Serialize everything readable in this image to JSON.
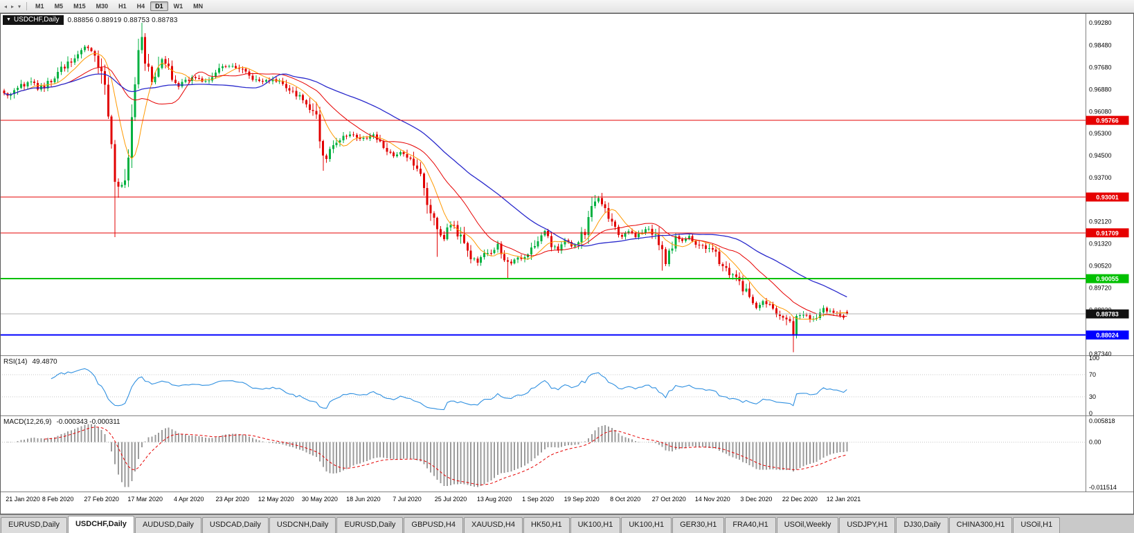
{
  "toolbar": {
    "icons": [
      {
        "name": "chart-back-icon",
        "glyph": "◂"
      },
      {
        "name": "chart-forward-icon",
        "glyph": "▸"
      },
      {
        "name": "chart-list-dropdown-icon",
        "glyph": "▾"
      }
    ],
    "timeframes": [
      "M1",
      "M5",
      "M15",
      "M30",
      "H1",
      "H4",
      "D1",
      "W1",
      "MN"
    ],
    "active_timeframe": "D1"
  },
  "chart": {
    "collapse_glyph": "▼",
    "symbol_title": "USDCHF,Daily",
    "ohlc_text": "0.88856 0.88919 0.88753 0.88783"
  },
  "indicators": {
    "rsi_label": "RSI(14)",
    "rsi_value": "49.4870",
    "macd_label": "MACD(12,26,9)",
    "macd_values": "-0.000343 -0.000311"
  },
  "chart_data": {
    "type": "candlestick",
    "symbol": "USDCHF",
    "period": "Daily",
    "candles_total": 252,
    "up_color": "#00b140",
    "down_color": "#e10000",
    "last_ohlc": {
      "open": 0.88856,
      "high": 0.88919,
      "low": 0.88753,
      "close": 0.88783
    },
    "price_axis": {
      "min": 0.8729,
      "max": 0.9961,
      "labels": [
        "0.99280",
        "0.98480",
        "0.97680",
        "0.96880",
        "0.96080",
        "0.95300",
        "0.94500",
        "0.93700",
        "0.92120",
        "0.91320",
        "0.90520",
        "0.89720",
        "0.88920",
        "0.87340"
      ]
    },
    "date_labels": [
      "21 Jan 2020",
      "8 Feb 2020",
      "27 Feb 2020",
      "17 Mar 2020",
      "4 Apr 2020",
      "23 Apr 2020",
      "12 May 2020",
      "30 May 2020",
      "18 Jun 2020",
      "7 Jul 2020",
      "25 Jul 2020",
      "13 Aug 2020",
      "1 Sep 2020",
      "19 Sep 2020",
      "8 Oct 2020",
      "27 Oct 2020",
      "14 Nov 2020",
      "3 Dec 2020",
      "22 Dec 2020",
      "12 Jan 2021"
    ],
    "first_label_candle": 3,
    "label_step_candles": 13,
    "close_anchors": [
      [
        0,
        0.967
      ],
      [
        2,
        0.9665
      ],
      [
        4,
        0.969
      ],
      [
        6,
        0.9705
      ],
      [
        8,
        0.9715
      ],
      [
        10,
        0.9695
      ],
      [
        12,
        0.97
      ],
      [
        14,
        0.972
      ],
      [
        16,
        0.9745
      ],
      [
        18,
        0.977
      ],
      [
        20,
        0.9795
      ],
      [
        22,
        0.982
      ],
      [
        24,
        0.984
      ],
      [
        25,
        0.9845
      ],
      [
        26,
        0.983
      ],
      [
        28,
        0.979
      ],
      [
        29,
        0.975
      ],
      [
        30,
        0.97
      ],
      [
        31,
        0.962
      ],
      [
        32,
        0.95
      ],
      [
        33,
        0.933
      ],
      [
        34,
        0.934
      ],
      [
        35,
        0.936
      ],
      [
        36,
        0.933
      ],
      [
        37,
        0.945
      ],
      [
        38,
        0.958
      ],
      [
        39,
        0.972
      ],
      [
        40,
        0.985
      ],
      [
        41,
        0.987
      ],
      [
        42,
        0.98
      ],
      [
        43,
        0.9755
      ],
      [
        44,
        0.9715
      ],
      [
        45,
        0.9745
      ],
      [
        46,
        0.9775
      ],
      [
        47,
        0.9795
      ],
      [
        48,
        0.979
      ],
      [
        49,
        0.9755
      ],
      [
        50,
        0.9725
      ],
      [
        52,
        0.9705
      ],
      [
        54,
        0.9715
      ],
      [
        56,
        0.9735
      ],
      [
        58,
        0.9725
      ],
      [
        60,
        0.9715
      ],
      [
        62,
        0.973
      ],
      [
        64,
        0.9755
      ],
      [
        66,
        0.977
      ],
      [
        68,
        0.9775
      ],
      [
        70,
        0.9765
      ],
      [
        72,
        0.9755
      ],
      [
        74,
        0.973
      ],
      [
        76,
        0.9715
      ],
      [
        78,
        0.972
      ],
      [
        80,
        0.9725
      ],
      [
        82,
        0.971
      ],
      [
        84,
        0.97
      ],
      [
        86,
        0.968
      ],
      [
        88,
        0.966
      ],
      [
        90,
        0.9645
      ],
      [
        92,
        0.961
      ],
      [
        93,
        0.9575
      ],
      [
        94,
        0.952
      ],
      [
        95,
        0.945
      ],
      [
        96,
        0.9445
      ],
      [
        97,
        0.9465
      ],
      [
        98,
        0.949
      ],
      [
        100,
        0.9515
      ],
      [
        102,
        0.9525
      ],
      [
        104,
        0.953
      ],
      [
        106,
        0.951
      ],
      [
        108,
        0.9515
      ],
      [
        110,
        0.952
      ],
      [
        112,
        0.95
      ],
      [
        114,
        0.947
      ],
      [
        116,
        0.945
      ],
      [
        118,
        0.946
      ],
      [
        120,
        0.9445
      ],
      [
        122,
        0.942
      ],
      [
        123,
        0.9395
      ],
      [
        124,
        0.937
      ],
      [
        125,
        0.933
      ],
      [
        126,
        0.929
      ],
      [
        127,
        0.925
      ],
      [
        128,
        0.921
      ],
      [
        129,
        0.918
      ],
      [
        130,
        0.916
      ],
      [
        131,
        0.915
      ],
      [
        132,
        0.9185
      ],
      [
        133,
        0.9205
      ],
      [
        134,
        0.919
      ],
      [
        135,
        0.9175
      ],
      [
        136,
        0.915
      ],
      [
        137,
        0.912
      ],
      [
        138,
        0.9095
      ],
      [
        139,
        0.908
      ],
      [
        140,
        0.9072
      ],
      [
        141,
        0.9068
      ],
      [
        142,
        0.9085
      ],
      [
        143,
        0.91
      ],
      [
        145,
        0.9092
      ],
      [
        147,
        0.913
      ],
      [
        149,
        0.908
      ],
      [
        151,
        0.906
      ],
      [
        153,
        0.909
      ],
      [
        155,
        0.9082
      ],
      [
        157,
        0.912
      ],
      [
        159,
        0.915
      ],
      [
        161,
        0.917
      ],
      [
        163,
        0.9132
      ],
      [
        165,
        0.9112
      ],
      [
        167,
        0.914
      ],
      [
        169,
        0.9125
      ],
      [
        171,
        0.9136
      ],
      [
        173,
        0.918
      ],
      [
        175,
        0.925
      ],
      [
        176,
        0.928
      ],
      [
        177,
        0.9295
      ],
      [
        178,
        0.9268
      ],
      [
        180,
        0.923
      ],
      [
        182,
        0.918
      ],
      [
        184,
        0.916
      ],
      [
        186,
        0.918
      ],
      [
        188,
        0.9155
      ],
      [
        190,
        0.9175
      ],
      [
        192,
        0.9185
      ],
      [
        194,
        0.916
      ],
      [
        196,
        0.912
      ],
      [
        197,
        0.906
      ],
      [
        198,
        0.911
      ],
      [
        200,
        0.915
      ],
      [
        202,
        0.914
      ],
      [
        204,
        0.9155
      ],
      [
        206,
        0.9135
      ],
      [
        208,
        0.912
      ],
      [
        210,
        0.911
      ],
      [
        212,
        0.909
      ],
      [
        214,
        0.905
      ],
      [
        216,
        0.902
      ],
      [
        218,
        0.9
      ],
      [
        220,
        0.897
      ],
      [
        222,
        0.894
      ],
      [
        224,
        0.89
      ],
      [
        226,
        0.892
      ],
      [
        228,
        0.891
      ],
      [
        230,
        0.888
      ],
      [
        232,
        0.8865
      ],
      [
        234,
        0.885
      ],
      [
        235,
        0.88
      ],
      [
        236,
        0.887
      ],
      [
        238,
        0.888
      ],
      [
        240,
        0.8855
      ],
      [
        242,
        0.8865
      ],
      [
        244,
        0.8895
      ],
      [
        246,
        0.889
      ],
      [
        248,
        0.8885
      ],
      [
        250,
        0.887
      ],
      [
        251,
        0.8878
      ]
    ],
    "spike_highs": [
      [
        8,
        0.9732
      ],
      [
        24,
        0.9849
      ],
      [
        41,
        0.9928
      ],
      [
        46,
        0.9806
      ],
      [
        176,
        0.9307
      ]
    ],
    "spike_lows": [
      [
        33,
        0.9155
      ],
      [
        95,
        0.9395
      ],
      [
        129,
        0.9085
      ],
      [
        150,
        0.9006
      ],
      [
        196,
        0.9035
      ],
      [
        235,
        0.874
      ]
    ],
    "moving_averages": [
      {
        "name": "fast",
        "period": 8,
        "color": "#ff9900",
        "width": 1
      },
      {
        "name": "medium",
        "period": 20,
        "color": "#e60000",
        "width": 1
      },
      {
        "name": "slow",
        "period": 45,
        "color": "#2929cc",
        "width": 1.3
      }
    ],
    "hlines": [
      {
        "name": "resistance-line-1",
        "price": 0.95766,
        "color": "#e60000",
        "width": 1,
        "badge": "0.95766"
      },
      {
        "name": "resistance-line-2",
        "price": 0.93001,
        "color": "#e60000",
        "width": 1,
        "badge": "0.93001"
      },
      {
        "name": "resistance-line-3",
        "price": 0.91709,
        "color": "#e60000",
        "width": 1,
        "badge": "0.91709"
      },
      {
        "name": "support-line-green",
        "price": 0.90055,
        "color": "#00c000",
        "width": 2,
        "badge": "0.90055"
      },
      {
        "name": "support-line-blue",
        "price": 0.88024,
        "color": "#0000ff",
        "width": 2,
        "badge": "0.88024"
      }
    ],
    "current_price": {
      "value": 0.88783,
      "label": "0.88783",
      "badge_color": "#111111",
      "line_color": "#b0b0b0"
    },
    "rsi": {
      "period": 14,
      "color": "#2e8fe0",
      "axis_labels": [
        "100",
        "70",
        "30",
        "0"
      ],
      "level_lines": [
        70,
        30
      ]
    },
    "macd": {
      "fast": 12,
      "slow": 26,
      "signal": 9,
      "axis_max": 0.005818,
      "axis_min": -0.011514,
      "top_label": "0.005818",
      "zero_label": "0.00",
      "bottom_label": "-0.011514",
      "hist_color": "#9b9b9b",
      "signal_color": "#e60000"
    }
  },
  "tabs": {
    "items": [
      {
        "label": "EURUSD,Daily"
      },
      {
        "label": "USDCHF,Daily",
        "active": true
      },
      {
        "label": "AUDUSD,Daily"
      },
      {
        "label": "USDCAD,Daily"
      },
      {
        "label": "USDCNH,Daily"
      },
      {
        "label": "EURUSD,Daily"
      },
      {
        "label": "GBPUSD,H4"
      },
      {
        "label": "XAUUSD,H4"
      },
      {
        "label": "HK50,H1"
      },
      {
        "label": "UK100,H1"
      },
      {
        "label": "UK100,H1"
      },
      {
        "label": "GER30,H1"
      },
      {
        "label": "FRA40,H1"
      },
      {
        "label": "USOil,Weekly"
      },
      {
        "label": "USDJPY,H1"
      },
      {
        "label": "DJ30,Daily"
      },
      {
        "label": "CHINA300,H1"
      },
      {
        "label": "USOil,H1"
      }
    ]
  }
}
